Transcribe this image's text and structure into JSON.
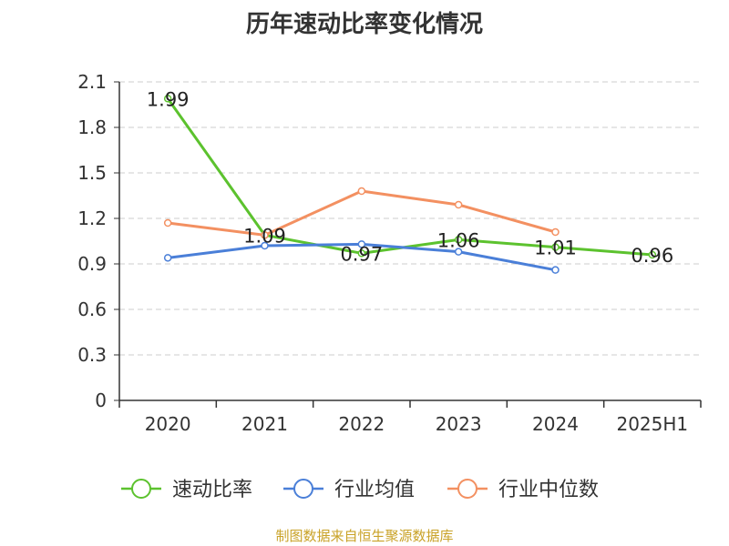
{
  "chart_data": {
    "type": "line",
    "title": "历年速动比率变化情况",
    "categories": [
      "2020",
      "2021",
      "2022",
      "2023",
      "2024",
      "2025H1"
    ],
    "ylim": [
      0,
      2.1
    ],
    "yticks": [
      "0",
      "0.3",
      "0.6",
      "0.9",
      "1.2",
      "1.5",
      "1.8",
      "2.1"
    ],
    "grid": true,
    "legend_position": "bottom",
    "series": [
      {
        "name": "速动比率",
        "color": "#5cc22e",
        "values": [
          1.99,
          1.09,
          0.97,
          1.06,
          1.01,
          0.96
        ],
        "labels": [
          "1.99",
          "1.09",
          "0.97",
          "1.06",
          "1.01",
          "0.96"
        ]
      },
      {
        "name": "行业均值",
        "color": "#4a7fd8",
        "values": [
          0.94,
          1.02,
          1.03,
          0.98,
          0.86,
          null
        ]
      },
      {
        "name": "行业中位数",
        "color": "#f39061",
        "values": [
          1.17,
          1.09,
          1.38,
          1.29,
          1.11,
          null
        ]
      }
    ],
    "source": "制图数据来自恒生聚源数据库"
  }
}
